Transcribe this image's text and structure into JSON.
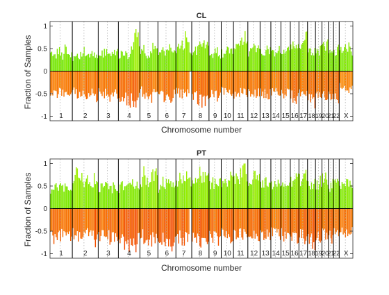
{
  "figure": {
    "background": "#ffffff"
  },
  "chart_data": [
    {
      "type": "bar",
      "title": "CL",
      "xlabel": "Chromosome number",
      "ylabel": "Fraction of Samples",
      "ylim": [
        -1.1,
        1.1
      ],
      "yticks": [
        -1,
        -0.5,
        0,
        0.5,
        1
      ],
      "ytick_labels": [
        "-1",
        "-0.5",
        "0",
        "0.5",
        "1"
      ],
      "grid": false,
      "chromosomes": [
        {
          "label": "1",
          "gain": [
            0.35,
            0.45,
            0.3,
            0.5,
            0.4,
            0.35,
            0.6,
            0.45,
            0.3,
            0.55
          ],
          "loss": [
            -0.5,
            -0.55,
            -0.6,
            -0.45,
            -0.5,
            -0.55,
            -0.4,
            -0.5,
            -0.6,
            -0.45
          ]
        },
        {
          "label": "2",
          "gain": [
            0.3,
            0.4,
            0.35,
            0.45,
            0.3,
            0.4,
            0.35,
            0.3
          ],
          "loss": [
            -0.45,
            -0.5,
            -0.55,
            -0.6,
            -0.5,
            -0.45,
            -0.7,
            -0.55
          ]
        },
        {
          "label": "3",
          "gain": [
            0.35,
            0.4,
            0.5,
            0.3,
            0.45,
            0.4
          ],
          "loss": [
            -0.5,
            -0.55,
            -0.45,
            -0.6,
            -0.5,
            -0.55
          ]
        },
        {
          "label": "4",
          "gain": [
            0.3,
            0.45,
            0.35,
            0.5,
            0.98,
            0.4
          ],
          "loss": [
            -0.55,
            -0.6,
            -0.7,
            -0.65,
            -0.75,
            -0.6
          ]
        },
        {
          "label": "5",
          "gain": [
            0.4,
            0.5,
            0.35,
            0.45,
            0.6,
            0.4
          ],
          "loss": [
            -0.45,
            -0.5,
            -0.55,
            -0.6,
            -0.5,
            -0.45
          ]
        },
        {
          "label": "6",
          "gain": [
            0.35,
            0.45,
            0.4,
            0.55,
            0.5,
            0.4
          ],
          "loss": [
            -0.5,
            -0.6,
            -0.55,
            -0.65,
            -0.55,
            -0.5
          ]
        },
        {
          "label": "7",
          "gain": [
            0.5,
            0.65,
            0.55,
            0.8,
            0.6,
            0.45
          ],
          "loss": [
            -0.45,
            -0.5,
            -0.55,
            -0.5,
            -0.45
          ]
        },
        {
          "label": "8",
          "gain": [
            0.4,
            0.5,
            0.6,
            0.55,
            0.85
          ],
          "loss": [
            -0.55,
            -0.6,
            -0.7,
            -0.65,
            -0.8
          ]
        },
        {
          "label": "9",
          "gain": [
            0.35,
            0.4,
            0.45,
            0.35
          ],
          "loss": [
            -0.5,
            -0.55,
            -0.6,
            -0.55
          ]
        },
        {
          "label": "10",
          "gain": [
            0.4,
            0.45,
            0.5,
            0.4
          ],
          "loss": [
            -0.45,
            -0.5,
            -0.55,
            -0.5
          ]
        },
        {
          "label": "11",
          "gain": [
            0.45,
            0.55,
            0.6,
            0.8,
            0.5
          ],
          "loss": [
            -0.5,
            -0.55,
            -0.45,
            -0.5,
            -0.55
          ]
        },
        {
          "label": "12",
          "gain": [
            0.4,
            0.5,
            0.55,
            0.45
          ],
          "loss": [
            -0.45,
            -0.5,
            -0.55,
            -0.5
          ]
        },
        {
          "label": "13",
          "gain": [
            0.4,
            0.45,
            0.5,
            0.45
          ],
          "loss": [
            -0.45,
            -0.5,
            -0.55,
            -0.5
          ]
        },
        {
          "label": "14",
          "gain": [
            0.4,
            0.45,
            0.5
          ],
          "loss": [
            -0.45,
            -0.5,
            -0.55
          ]
        },
        {
          "label": "15",
          "gain": [
            0.4,
            0.5,
            0.45
          ],
          "loss": [
            -0.5,
            -0.55,
            -0.5
          ]
        },
        {
          "label": "16",
          "gain": [
            0.5,
            0.6,
            0.55
          ],
          "loss": [
            -0.55,
            -0.6,
            -0.65
          ]
        },
        {
          "label": "17",
          "gain": [
            0.55,
            0.7,
            0.8
          ],
          "loss": [
            -0.5,
            -0.55,
            -0.6
          ]
        },
        {
          "label": "18",
          "gain": [
            0.4,
            0.5
          ],
          "loss": [
            -0.6,
            -0.7
          ]
        },
        {
          "label": "19",
          "gain": [
            0.45,
            0.5
          ],
          "loss": [
            -0.55,
            -0.6
          ]
        },
        {
          "label": "20",
          "gain": [
            0.55,
            0.6
          ],
          "loss": [
            -0.5,
            -0.55
          ]
        },
        {
          "label": "21",
          "gain": [
            0.4,
            0.45
          ],
          "loss": [
            -0.6,
            -0.65
          ]
        },
        {
          "label": "22",
          "gain": [
            0.45,
            0.5
          ],
          "loss": [
            -0.55,
            -0.6
          ]
        },
        {
          "label": "X",
          "gain": [
            0.5,
            0.55,
            0.6,
            0.5,
            0.45
          ],
          "loss": [
            -0.35,
            -0.4,
            -0.45,
            -0.4,
            -0.35
          ]
        }
      ]
    },
    {
      "type": "bar",
      "title": "PT",
      "xlabel": "Chromosome number",
      "ylabel": "Fraction of Samples",
      "ylim": [
        -1.1,
        1.1
      ],
      "yticks": [
        -1,
        -0.5,
        0,
        0.5,
        1
      ],
      "ytick_labels": [
        "-1",
        "-0.5",
        "0",
        "0.5",
        "1"
      ],
      "grid": false,
      "chromosomes": [
        {
          "label": "1",
          "gain": [
            0.35,
            0.45,
            0.55,
            0.4,
            0.5,
            0.45,
            0.6,
            0.4,
            0.55,
            0.5
          ],
          "loss": [
            -0.6,
            -0.65,
            -0.7,
            -0.55,
            -0.6,
            -0.65,
            -0.5,
            -0.6,
            -0.7,
            -0.55
          ]
        },
        {
          "label": "2",
          "gain": [
            0.6,
            0.8,
            0.7,
            0.65,
            0.75,
            0.6,
            0.7,
            0.65
          ],
          "loss": [
            -0.55,
            -0.6,
            -0.65,
            -0.7,
            -0.6,
            -0.55,
            -0.75,
            -0.6
          ]
        },
        {
          "label": "3",
          "gain": [
            0.45,
            0.5,
            0.55,
            0.45,
            0.5,
            0.45
          ],
          "loss": [
            -0.6,
            -0.65,
            -0.55,
            -0.7,
            -0.6,
            -0.65
          ]
        },
        {
          "label": "4",
          "gain": [
            0.45,
            0.55,
            0.5,
            0.6,
            0.5,
            0.55
          ],
          "loss": [
            -0.65,
            -0.7,
            -0.85,
            -0.75,
            -0.8,
            -0.7
          ]
        },
        {
          "label": "5",
          "gain": [
            0.55,
            0.8,
            0.6,
            0.7,
            0.85,
            0.65
          ],
          "loss": [
            -0.6,
            -0.65,
            -0.7,
            -0.75,
            -0.65,
            -0.6
          ]
        },
        {
          "label": "6",
          "gain": [
            0.45,
            0.6,
            0.55,
            0.65,
            0.6,
            0.5
          ],
          "loss": [
            -0.65,
            -0.75,
            -0.7,
            -0.9,
            -0.75,
            -0.65
          ]
        },
        {
          "label": "7",
          "gain": [
            0.6,
            0.75,
            0.7,
            0.85,
            0.7,
            0.6
          ],
          "loss": [
            -0.6,
            -0.65,
            -0.7,
            -0.65,
            -0.6
          ]
        },
        {
          "label": "8",
          "gain": [
            0.6,
            0.75,
            0.8,
            0.7,
            0.95
          ],
          "loss": [
            -0.65,
            -0.7,
            -0.8,
            -0.75,
            -0.85
          ]
        },
        {
          "label": "9",
          "gain": [
            0.5,
            0.6,
            0.65,
            0.55
          ],
          "loss": [
            -0.6,
            -0.65,
            -0.7,
            -0.6
          ]
        },
        {
          "label": "10",
          "gain": [
            0.55,
            0.6,
            0.7,
            0.6
          ],
          "loss": [
            -0.55,
            -0.6,
            -0.65,
            -0.6
          ]
        },
        {
          "label": "11",
          "gain": [
            0.6,
            0.7,
            0.8,
            0.9,
            0.65
          ],
          "loss": [
            -0.6,
            -0.65,
            -0.55,
            -0.6,
            -0.65
          ]
        },
        {
          "label": "12",
          "gain": [
            0.55,
            0.65,
            0.75,
            0.6
          ],
          "loss": [
            -0.55,
            -0.6,
            -0.65,
            -0.6
          ]
        },
        {
          "label": "13",
          "gain": [
            0.55,
            0.6,
            0.65,
            0.55
          ],
          "loss": [
            -0.55,
            -0.6,
            -0.65,
            -0.6
          ]
        },
        {
          "label": "14",
          "gain": [
            0.5,
            0.55,
            0.6
          ],
          "loss": [
            -0.55,
            -0.6,
            -0.65
          ]
        },
        {
          "label": "15",
          "gain": [
            0.55,
            0.6,
            0.55
          ],
          "loss": [
            -0.6,
            -0.65,
            -0.6
          ]
        },
        {
          "label": "16",
          "gain": [
            0.6,
            0.7,
            0.65
          ],
          "loss": [
            -0.6,
            -0.7,
            -0.75
          ]
        },
        {
          "label": "17",
          "gain": [
            0.65,
            0.8,
            0.75
          ],
          "loss": [
            -0.6,
            -0.65,
            -0.7
          ]
        },
        {
          "label": "18",
          "gain": [
            0.5,
            0.6
          ],
          "loss": [
            -0.7,
            -0.8
          ]
        },
        {
          "label": "19",
          "gain": [
            0.55,
            0.65
          ],
          "loss": [
            -0.65,
            -0.7
          ]
        },
        {
          "label": "20",
          "gain": [
            0.65,
            0.7
          ],
          "loss": [
            -0.6,
            -0.65
          ]
        },
        {
          "label": "21",
          "gain": [
            0.5,
            0.55
          ],
          "loss": [
            -0.65,
            -0.7
          ]
        },
        {
          "label": "22",
          "gain": [
            0.55,
            0.6
          ],
          "loss": [
            -0.6,
            -0.65
          ]
        },
        {
          "label": "X",
          "gain": [
            0.55,
            0.6,
            0.65,
            0.55,
            0.5
          ],
          "loss": [
            -0.45,
            -0.5,
            -0.55,
            -0.5,
            -0.45
          ]
        }
      ]
    }
  ],
  "colors": {
    "gain_high": "#a8f000",
    "gain_low": "#55e000",
    "loss_low": "#ffb000",
    "loss_high": "#f04000",
    "axis": "#262626",
    "chrom_divider": "#000000",
    "centromere": "#b0b0b0"
  }
}
